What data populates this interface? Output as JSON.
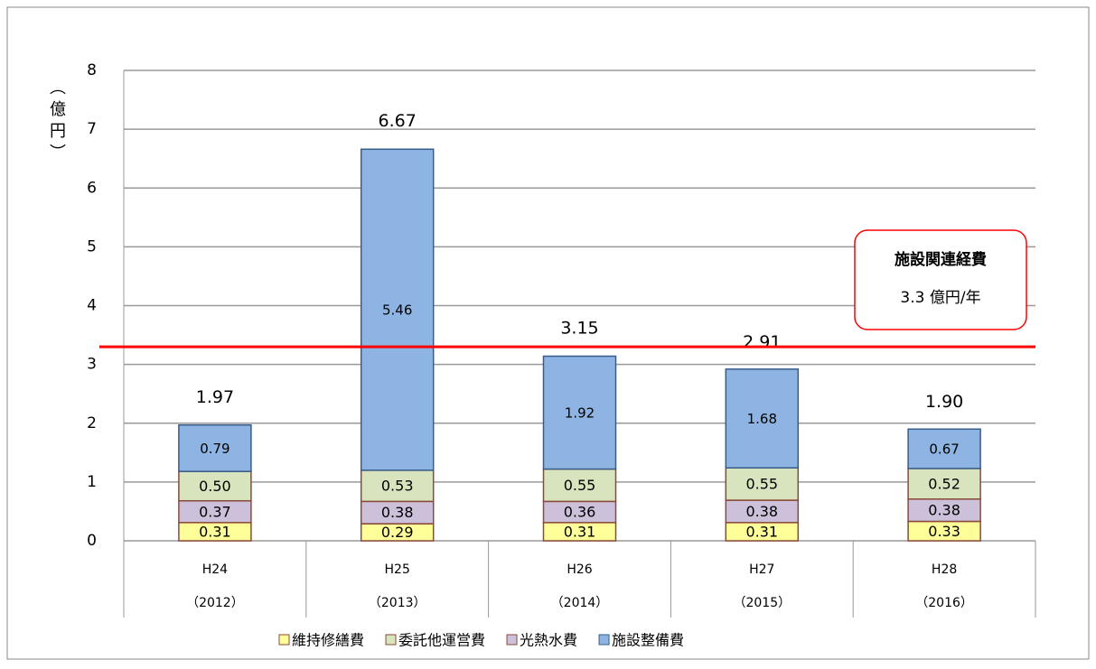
{
  "chart_data": {
    "type": "stacked_bar",
    "y_label": "（億円）",
    "categories": [
      "H24",
      "H25",
      "H26",
      "H27",
      "H28"
    ],
    "category_sublabels": [
      "（2012）",
      "（2013）",
      "（2014）",
      "（2015）",
      "（2016）"
    ],
    "series": [
      {
        "name": "維持修繕費",
        "color": "#ffff99",
        "border": "#8a4a3a",
        "values": [
          0.31,
          0.29,
          0.31,
          0.31,
          0.33
        ],
        "value_labels": [
          "0.31",
          "0.29",
          "0.31",
          "0.31",
          "0.33"
        ]
      },
      {
        "name": "委託他運営費",
        "color": "#d7e4bd",
        "border": "#8a4a3a",
        "values": [
          0.5,
          0.53,
          0.55,
          0.55,
          0.52
        ],
        "value_labels": [
          "0.50",
          "0.53",
          "0.55",
          "0.55",
          "0.52"
        ]
      },
      {
        "name": "光熱水費",
        "color": "#ccc0da",
        "border": "#8a4a3a",
        "values": [
          0.37,
          0.38,
          0.36,
          0.38,
          0.38
        ],
        "value_labels": [
          "0.37",
          "0.38",
          "0.36",
          "0.38",
          "0.38"
        ]
      },
      {
        "name": "施設整備費",
        "color": "#8db4e2",
        "border": "#385d8a",
        "values": [
          0.79,
          5.46,
          1.92,
          1.68,
          0.67
        ],
        "value_labels": [
          "0.79",
          "5.46",
          "1.92",
          "1.68",
          "0.67"
        ]
      }
    ],
    "stack_order": [
      0,
      2,
      1,
      3
    ],
    "totals": [
      1.97,
      6.67,
      3.15,
      2.91,
      1.9
    ],
    "total_labels": [
      "1.97",
      "6.67",
      "3.15",
      "2.91",
      "1.90"
    ],
    "reference_line": {
      "value": 3.3,
      "color": "#ff0000"
    },
    "annotation": {
      "title": "施設関連経費",
      "text": "3.3 億円/年"
    },
    "ylim": [
      0,
      8
    ],
    "yticks": [
      0,
      1,
      2,
      3,
      4,
      5,
      6,
      7,
      8
    ],
    "grid": true
  }
}
